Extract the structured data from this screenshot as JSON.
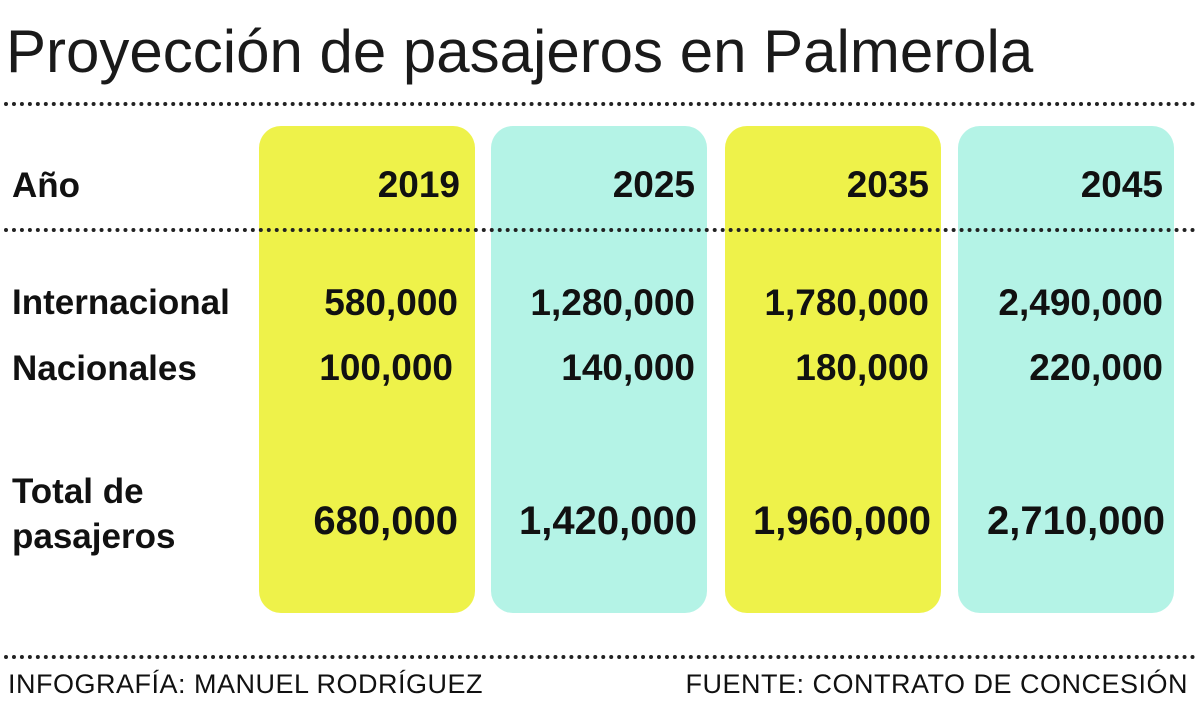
{
  "title": "Proyección de pasajeros en Palmerola",
  "row_labels": {
    "year": "Año",
    "international": "Internacional",
    "national": "Nacionales",
    "total_line1": "Total de",
    "total_line2": "pasajeros"
  },
  "colors": {
    "yellow": "#eef24a",
    "mint": "#b4f3e6"
  },
  "footer": {
    "credit": "INFOGRAFÍA: MANUEL RODRÍGUEZ",
    "source": "FUENTE: CONTRATO DE CONCESIÓN"
  },
  "chart_data": {
    "type": "table",
    "title": "Proyección de pasajeros en Palmerola",
    "columns": [
      "2019",
      "2025",
      "2035",
      "2045"
    ],
    "rows": [
      {
        "label": "Internacional",
        "values": [
          "580,000",
          "1,280,000",
          "1,780,000",
          "2,490,000"
        ]
      },
      {
        "label": "Nacionales",
        "values": [
          "100,000",
          "140,000",
          "180,000",
          "220,000"
        ]
      },
      {
        "label": "Total de pasajeros",
        "values": [
          "680,000",
          "1,420,000",
          "1,960,000",
          "2,710,000"
        ]
      }
    ]
  }
}
